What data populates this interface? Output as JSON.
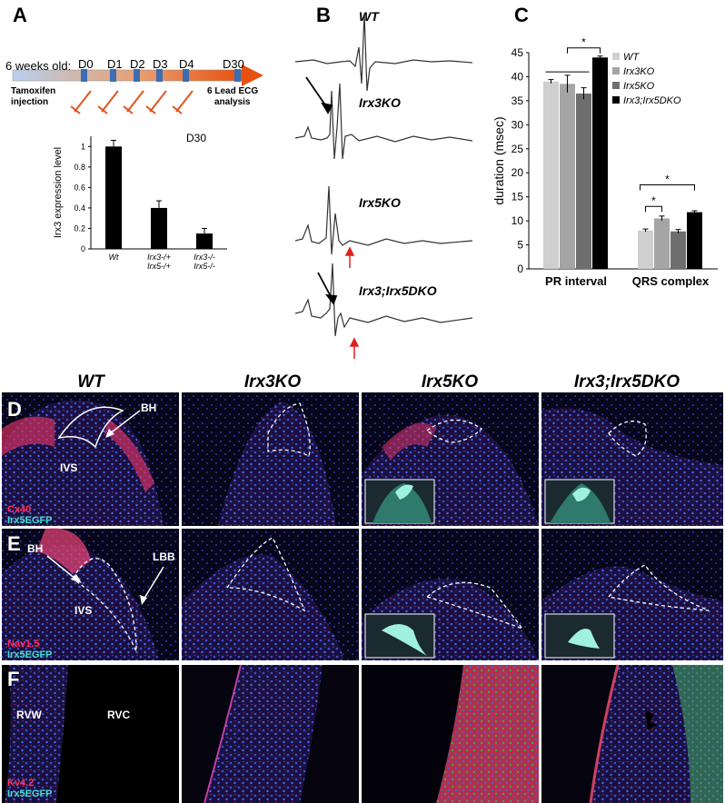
{
  "panelA": {
    "label": "A",
    "timeline_start": "6 weeks old:",
    "days": [
      "D0",
      "D1",
      "D2",
      "D3",
      "D4",
      "D30"
    ],
    "injection_label_1": "Tamoxifen",
    "injection_label_2": "injection",
    "analysis_label_1": "6 Lead ECG",
    "analysis_label_2": "analysis"
  },
  "panelB": {
    "label": "B",
    "traces": [
      "WT",
      "Irx3KO",
      "Irx5KO",
      "Irx3;Irx5DKO"
    ]
  },
  "panelC": {
    "label": "C"
  },
  "chart_data": [
    {
      "type": "bar",
      "title": "D30",
      "ylabel": "Irx3 expression level",
      "categories": [
        "Wt",
        "Irx3-/+ Irx5-/+",
        "Irx3-/- Irx5-/-"
      ],
      "category_lines": [
        [
          "Wt"
        ],
        [
          "Irx3-/+",
          "Irx5-/+"
        ],
        [
          "Irx3-/-",
          "Irx5-/-"
        ]
      ],
      "values": [
        1.0,
        0.4,
        0.15
      ],
      "errors": [
        0.06,
        0.07,
        0.05
      ],
      "ylim": [
        0,
        1.1
      ],
      "yticks": [
        0,
        0.2,
        0.4,
        0.6,
        0.8,
        1
      ],
      "ytick_labels": [
        "0",
        "0.2",
        "0.4",
        "0.6",
        "0.8",
        "1"
      ]
    },
    {
      "type": "bar",
      "ylabel": "duration (msec)",
      "categories": [
        "PR interval",
        "QRS complex"
      ],
      "series": [
        {
          "name": "WT",
          "values": [
            39.0,
            8.0
          ],
          "errors": [
            0.4,
            0.3
          ],
          "color": "#cfcfcf"
        },
        {
          "name": "Irx3KO",
          "values": [
            38.5,
            10.5
          ],
          "errors": [
            1.8,
            0.5
          ],
          "color": "#a5a5a5"
        },
        {
          "name": "Irx5KO",
          "values": [
            36.5,
            7.8
          ],
          "errors": [
            1.2,
            0.4
          ],
          "color": "#6e6e6e"
        },
        {
          "name": "Irx3;Irx5DKO",
          "values": [
            44.0,
            11.8
          ],
          "errors": [
            0.3,
            0.3
          ],
          "color": "#000000"
        }
      ],
      "ylim": [
        0,
        45
      ],
      "yticks": [
        0,
        5,
        10,
        15,
        20,
        25,
        30,
        35,
        40,
        45
      ],
      "significance": [
        "*",
        "*",
        "*"
      ],
      "legend": "top-right"
    }
  ],
  "micro": {
    "columns": [
      "WT",
      "Irx3KO",
      "Irx5KO",
      "Irx3;Irx5DKO"
    ],
    "rows": [
      {
        "label": "D",
        "stain1": "Cx40",
        "stain2": "Irx5EGFP",
        "color1": "#ff3060",
        "color2": "#40e0d0"
      },
      {
        "label": "E",
        "stain1": "Nav1.5",
        "stain2": "Irx5EGFP",
        "color1": "#ff3060",
        "color2": "#40e0d0"
      },
      {
        "label": "F",
        "stain1": "Kv4.2",
        "stain2": "Irx5EGFP",
        "color1": "#ff3060",
        "color2": "#40e0d0"
      }
    ],
    "annotations": {
      "bh": "BH",
      "ivs": "IVS",
      "lbb": "LBB",
      "rvw": "RVW",
      "rvc": "RVC"
    }
  }
}
